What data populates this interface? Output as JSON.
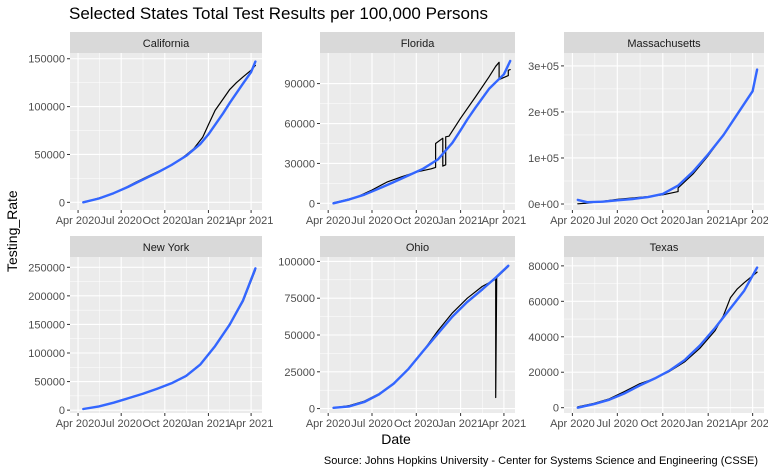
{
  "title": "Selected States Total Test Results per 100,000 Persons",
  "caption": "Source:  Johns Hopkins University - Center for Systems Science and Engineering (CSSE)",
  "colors": {
    "panel_bg": "#ebebeb",
    "strip_bg": "#d9d9d9",
    "grid_major": "#ffffff",
    "data_line": "#000000",
    "smooth_line": "#3366ff",
    "tick_text": "#4d4d4d"
  },
  "chart_data": {
    "type": "line",
    "facet_type": "facet_wrap",
    "xlabel": "Date",
    "ylabel": "Testing_Rate",
    "x_ticks": [
      "Apr 2020",
      "Jul 2020",
      "Oct 2020",
      "Jan 2021",
      "Apr 2021"
    ],
    "x_tick_dates": [
      "2020-04-01",
      "2020-07-01",
      "2020-10-01",
      "2021-01-01",
      "2021-04-01"
    ],
    "xlim": [
      "2020-03-15",
      "2021-04-24"
    ],
    "grid": true,
    "legend": "none",
    "panels": [
      {
        "state": "California",
        "ylim": [
          -8000,
          156000
        ],
        "y_ticks": [
          0,
          50000,
          100000,
          150000
        ],
        "y_tick_labels": [
          "0",
          "50000",
          "100000",
          "150000"
        ],
        "series": [
          {
            "name": "",
            "style": "observed",
            "x": [
              "2020-04-12",
              "2020-05-01",
              "2020-06-01",
              "2020-07-01",
              "2020-08-01",
              "2020-09-01",
              "2020-10-01",
              "2020-11-01",
              "2020-12-01",
              "2020-12-20",
              "2021-01-01",
              "2021-01-15",
              "2021-02-01",
              "2021-02-15",
              "2021-03-01",
              "2021-03-15",
              "2021-04-01",
              "2021-04-10"
            ],
            "y": [
              500,
              2500,
              7000,
              13000,
              21000,
              28500,
              35500,
              44000,
              56000,
              68000,
              81000,
              96000,
              108000,
              118000,
              125000,
              131000,
              138000,
              143000
            ]
          },
          {
            "name": "",
            "style": "smooth",
            "x": [
              "2020-04-12",
              "2020-05-15",
              "2020-06-15",
              "2020-07-15",
              "2020-08-15",
              "2020-09-15",
              "2020-10-15",
              "2020-11-15",
              "2020-12-15",
              "2021-01-01",
              "2021-01-15",
              "2021-02-01",
              "2021-02-15",
              "2021-03-01",
              "2021-03-15",
              "2021-04-01",
              "2021-04-10"
            ],
            "y": [
              0,
              4000,
              9500,
              16000,
              23500,
              31000,
              39000,
              48500,
              61000,
              71000,
              81000,
              93000,
              104000,
              114000,
              124000,
              136000,
              147000
            ]
          }
        ]
      },
      {
        "state": "Florida",
        "ylim": [
          -5000,
          113000
        ],
        "y_ticks": [
          0,
          30000,
          60000,
          90000
        ],
        "y_tick_labels": [
          "0",
          "30000",
          "60000",
          "90000"
        ],
        "series": [
          {
            "name": "",
            "style": "observed",
            "x": [
              "2020-04-12",
              "2020-05-01",
              "2020-06-01",
              "2020-07-01",
              "2020-08-01",
              "2020-09-01",
              "2020-10-01",
              "2020-11-01",
              "2020-11-10",
              "2020-11-10",
              "2020-11-25",
              "2020-11-25",
              "2020-12-01",
              "2020-12-01",
              "2020-12-08",
              "2021-01-01",
              "2021-02-01",
              "2021-03-01",
              "2021-03-15",
              "2021-03-22",
              "2021-03-22",
              "2021-04-10",
              "2021-04-10",
              "2021-04-14"
            ],
            "y": [
              500,
              2000,
              5000,
              10000,
              16000,
              20000,
              23500,
              26000,
              27000,
              45000,
              49000,
              28000,
              29000,
              50000,
              50500,
              64000,
              80000,
              95000,
              103000,
              106000,
              93000,
              96000,
              100000,
              100500
            ]
          },
          {
            "name": "",
            "style": "smooth",
            "x": [
              "2020-04-12",
              "2020-05-15",
              "2020-06-15",
              "2020-07-15",
              "2020-08-15",
              "2020-09-15",
              "2020-10-15",
              "2020-11-15",
              "2020-12-15",
              "2021-01-01",
              "2021-01-15",
              "2021-02-01",
              "2021-02-15",
              "2021-03-01",
              "2021-03-15",
              "2021-04-01",
              "2021-04-14"
            ],
            "y": [
              0,
              3000,
              6500,
              11000,
              16000,
              21000,
              26000,
              33000,
              45500,
              55000,
              63000,
              72000,
              79000,
              86000,
              91000,
              97000,
              107000
            ]
          }
        ]
      },
      {
        "state": "Massachusetts",
        "ylim": [
          -13000,
          328000
        ],
        "y_ticks": [
          0,
          100000,
          200000,
          300000
        ],
        "y_tick_labels": [
          "0e+00",
          "1e+05",
          "2e+05",
          "3e+05"
        ],
        "series": [
          {
            "name": "",
            "style": "observed",
            "x": [
              "2020-04-12",
              "2020-05-01",
              "2020-06-01",
              "2020-07-01",
              "2020-08-01",
              "2020-09-01",
              "2020-10-01",
              "2020-11-01",
              "2020-11-01",
              "2020-12-01",
              "2021-01-01",
              "2021-02-01",
              "2021-03-01",
              "2021-04-01",
              "2021-04-10"
            ],
            "y": [
              500,
              2000,
              6000,
              10000,
              13000,
              16000,
              20000,
              27000,
              35000,
              65000,
              105000,
              150000,
              195000,
              245000,
              289000
            ]
          },
          {
            "name": "",
            "style": "smooth",
            "x": [
              "2020-04-12",
              "2020-05-01",
              "2020-06-01",
              "2020-07-01",
              "2020-08-01",
              "2020-09-01",
              "2020-10-01",
              "2020-11-01",
              "2020-12-01",
              "2021-01-01",
              "2021-02-01",
              "2021-03-01",
              "2021-04-01",
              "2021-04-10"
            ],
            "y": [
              9000,
              4000,
              5000,
              8000,
              11000,
              15000,
              22000,
              40000,
              70000,
              108000,
              150000,
              195000,
              245000,
              292000
            ]
          }
        ]
      },
      {
        "state": "New York",
        "ylim": [
          -5000,
          268000
        ],
        "y_ticks": [
          0,
          50000,
          100000,
          150000,
          200000,
          250000
        ],
        "y_tick_labels": [
          "0",
          "50000",
          "100000",
          "150000",
          "200000",
          "250000"
        ],
        "series": [
          {
            "name": "",
            "style": "observed",
            "x": [
              "2020-04-12",
              "2020-05-15",
              "2020-06-15",
              "2020-07-15",
              "2020-08-15",
              "2020-09-15",
              "2020-10-15",
              "2020-11-15",
              "2020-12-15",
              "2021-01-15",
              "2021-02-15",
              "2021-03-15",
              "2021-04-10"
            ],
            "y": [
              2000,
              6000,
              13000,
              20000,
              28000,
              37000,
              47000,
              60000,
              80000,
              112000,
              150000,
              190000,
              245000
            ]
          },
          {
            "name": "",
            "style": "smooth",
            "x": [
              "2020-04-12",
              "2020-05-15",
              "2020-06-15",
              "2020-07-15",
              "2020-08-15",
              "2020-09-15",
              "2020-10-15",
              "2020-11-15",
              "2020-12-15",
              "2021-01-15",
              "2021-02-15",
              "2021-03-15",
              "2021-04-10"
            ],
            "y": [
              2000,
              6500,
              13000,
              20500,
              28500,
              37500,
              47000,
              60000,
              80000,
              112000,
              150000,
              192000,
              248000
            ]
          }
        ]
      },
      {
        "state": "Ohio",
        "ylim": [
          -3000,
          103000
        ],
        "y_ticks": [
          0,
          25000,
          50000,
          75000,
          100000
        ],
        "y_tick_labels": [
          "0",
          "25000",
          "50000",
          "75000",
          "100000"
        ],
        "series": [
          {
            "name": "",
            "style": "observed",
            "x": [
              "2020-04-12",
              "2020-05-15",
              "2020-06-15",
              "2020-07-15",
              "2020-08-15",
              "2020-09-15",
              "2020-10-15",
              "2020-11-15",
              "2020-12-15",
              "2021-01-15",
              "2021-02-15",
              "2021-03-10",
              "2021-03-15",
              "2021-03-15",
              "2021-03-17",
              "2021-04-10"
            ],
            "y": [
              500,
              2000,
              5000,
              10000,
              17000,
              27000,
              39000,
              53000,
              65000,
              75000,
              83000,
              87000,
              88000,
              7500,
              89000,
              96500
            ]
          },
          {
            "name": "",
            "style": "smooth",
            "x": [
              "2020-04-12",
              "2020-05-15",
              "2020-06-15",
              "2020-07-15",
              "2020-08-15",
              "2020-09-15",
              "2020-10-15",
              "2020-11-15",
              "2020-12-15",
              "2021-01-15",
              "2021-02-15",
              "2021-03-15",
              "2021-04-10"
            ],
            "y": [
              500,
              1500,
              4500,
              9500,
              17000,
              27000,
              39000,
              51000,
              62500,
              72500,
              81000,
              89000,
              97000
            ]
          }
        ]
      },
      {
        "state": "Texas",
        "ylim": [
          -3000,
          85000
        ],
        "y_ticks": [
          0,
          20000,
          40000,
          60000,
          80000
        ],
        "y_tick_labels": [
          "0",
          "20000",
          "40000",
          "60000",
          "80000"
        ],
        "series": [
          {
            "name": "",
            "style": "observed",
            "x": [
              "2020-04-12",
              "2020-05-15",
              "2020-06-15",
              "2020-07-15",
              "2020-08-15",
              "2020-09-15",
              "2020-10-15",
              "2020-11-15",
              "2020-12-15",
              "2021-01-15",
              "2021-02-01",
              "2021-02-15",
              "2021-03-01",
              "2021-03-15",
              "2021-04-10"
            ],
            "y": [
              500,
              2500,
              5000,
              9000,
              13500,
              16500,
              20500,
              26000,
              33500,
              43500,
              52000,
              62000,
              67000,
              70500,
              76500
            ]
          },
          {
            "name": "",
            "style": "smooth",
            "x": [
              "2020-04-12",
              "2020-05-15",
              "2020-06-15",
              "2020-07-15",
              "2020-08-15",
              "2020-09-15",
              "2020-10-15",
              "2020-11-15",
              "2020-12-15",
              "2021-01-15",
              "2021-02-15",
              "2021-03-15",
              "2021-04-10"
            ],
            "y": [
              0,
              2000,
              4500,
              8000,
              12500,
              16500,
              21000,
              27000,
              35000,
              45000,
              56000,
              66000,
              79000
            ]
          }
        ]
      }
    ]
  }
}
